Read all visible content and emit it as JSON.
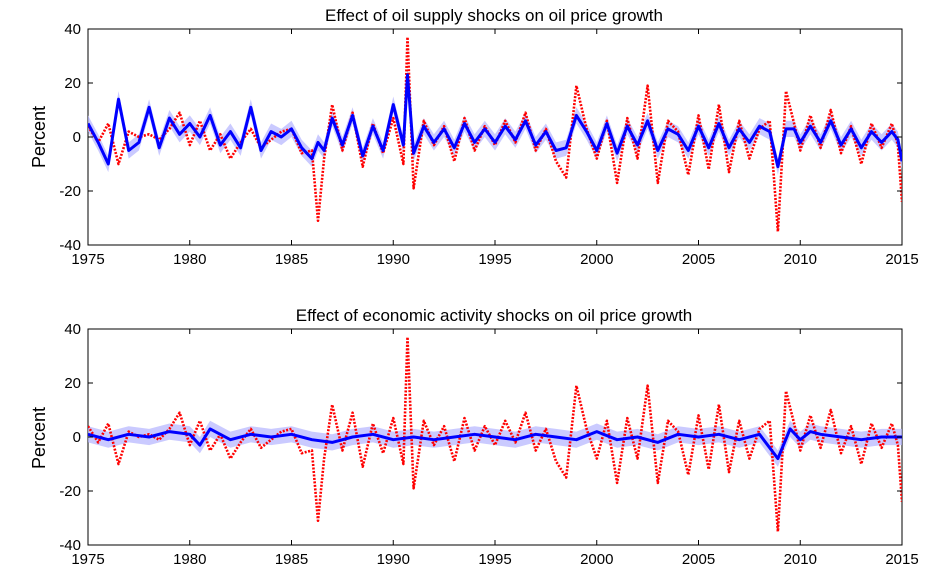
{
  "chart_data": [
    {
      "type": "line",
      "title": "Effect of oil supply shocks on oil price growth",
      "xlabel": "",
      "ylabel": "Percent",
      "xlim": [
        1975,
        2015
      ],
      "ylim": [
        -40,
        40
      ],
      "xticks": [
        1975,
        1980,
        1985,
        1990,
        1995,
        2000,
        2005,
        2010,
        2015
      ],
      "yticks": [
        -40,
        -20,
        0,
        20,
        40
      ],
      "grid": false,
      "legend": "none",
      "colors": {
        "observed": "#ff0000",
        "effect": "#0000ff",
        "band": "#b3b3ff"
      },
      "series": [
        {
          "style": "dotted-red",
          "x": [
            1975.0,
            1975.5,
            1976.0,
            1976.5,
            1977.0,
            1977.5,
            1978.0,
            1978.5,
            1979.0,
            1979.5,
            1980.0,
            1980.5,
            1981.0,
            1981.5,
            1982.0,
            1982.5,
            1983.0,
            1983.5,
            1984.0,
            1984.5,
            1985.0,
            1985.5,
            1986.0,
            1986.3,
            1986.6,
            1987.0,
            1987.5,
            1988.0,
            1988.5,
            1989.0,
            1989.5,
            1990.0,
            1990.5,
            1990.7,
            1991.0,
            1991.5,
            1992.0,
            1992.5,
            1993.0,
            1993.5,
            1994.0,
            1994.5,
            1995.0,
            1995.5,
            1996.0,
            1996.5,
            1997.0,
            1997.5,
            1998.0,
            1998.5,
            1999.0,
            1999.5,
            2000.0,
            2000.5,
            2001.0,
            2001.5,
            2002.0,
            2002.5,
            2003.0,
            2003.5,
            2004.0,
            2004.5,
            2005.0,
            2005.5,
            2006.0,
            2006.5,
            2007.0,
            2007.5,
            2008.0,
            2008.5,
            2008.9,
            2009.3,
            2009.7,
            2010.0,
            2010.5,
            2011.0,
            2011.5,
            2012.0,
            2012.5,
            2013.0,
            2013.5,
            2014.0,
            2014.5,
            2014.8,
            2015.0
          ],
          "y": [
            4,
            -2,
            5,
            -10,
            2,
            0,
            1,
            -1,
            3,
            9,
            -3,
            6,
            -5,
            1,
            -8,
            -2,
            3,
            -4,
            -1,
            2,
            3,
            -6,
            -5,
            -31,
            -8,
            12,
            -5,
            9,
            -11,
            5,
            -6,
            7,
            -10,
            37,
            -19,
            6,
            -3,
            4,
            -9,
            7,
            -5,
            4,
            -3,
            6,
            -2,
            9,
            -5,
            3,
            -9,
            -15,
            19,
            3,
            -8,
            6,
            -17,
            7,
            -8,
            19,
            -17,
            6,
            2,
            -14,
            8,
            -12,
            12,
            -13,
            6,
            -8,
            3,
            6,
            -35,
            17,
            5,
            -5,
            8,
            -4,
            10,
            -6,
            4,
            -10,
            5,
            -4,
            5,
            -3,
            -24
          ]
        },
        {
          "style": "solid-blue",
          "x": [
            1975.0,
            1975.5,
            1976.0,
            1976.5,
            1977.0,
            1977.5,
            1978.0,
            1978.5,
            1979.0,
            1979.5,
            1980.0,
            1980.5,
            1981.0,
            1981.5,
            1982.0,
            1982.5,
            1983.0,
            1983.5,
            1984.0,
            1984.5,
            1985.0,
            1985.5,
            1986.0,
            1986.3,
            1986.6,
            1987.0,
            1987.5,
            1988.0,
            1988.5,
            1989.0,
            1989.5,
            1990.0,
            1990.5,
            1990.7,
            1991.0,
            1991.5,
            1992.0,
            1992.5,
            1993.0,
            1993.5,
            1994.0,
            1994.5,
            1995.0,
            1995.5,
            1996.0,
            1996.5,
            1997.0,
            1997.5,
            1998.0,
            1998.5,
            1999.0,
            1999.5,
            2000.0,
            2000.5,
            2001.0,
            2001.5,
            2002.0,
            2002.5,
            2003.0,
            2003.5,
            2004.0,
            2004.5,
            2005.0,
            2005.5,
            2006.0,
            2006.5,
            2007.0,
            2007.5,
            2008.0,
            2008.5,
            2008.9,
            2009.3,
            2009.7,
            2010.0,
            2010.5,
            2011.0,
            2011.5,
            2012.0,
            2012.5,
            2013.0,
            2013.5,
            2014.0,
            2014.5,
            2014.8,
            2015.0
          ],
          "y": [
            5,
            -2,
            -10,
            14,
            -5,
            -2,
            11,
            -4,
            7,
            1,
            5,
            0,
            8,
            -3,
            2,
            -4,
            11,
            -5,
            2,
            0,
            3,
            -4,
            -8,
            -2,
            -5,
            7,
            -3,
            8,
            -7,
            4,
            -5,
            12,
            -3,
            23,
            -6,
            4,
            -2,
            3,
            -4,
            5,
            -2,
            3,
            -2,
            4,
            -1,
            6,
            -3,
            2,
            -5,
            -4,
            8,
            2,
            -5,
            5,
            -6,
            4,
            -3,
            6,
            -5,
            3,
            1,
            -5,
            4,
            -4,
            5,
            -4,
            3,
            -2,
            4,
            2,
            -11,
            3,
            3,
            -2,
            4,
            -2,
            6,
            -3,
            3,
            -4,
            2,
            -2,
            2,
            -1,
            -9
          ]
        }
      ]
    },
    {
      "type": "line",
      "title": "Effect of economic activity shocks on oil price growth",
      "xlabel": "",
      "ylabel": "Percent",
      "xlim": [
        1975,
        2015
      ],
      "ylim": [
        -40,
        40
      ],
      "xticks": [
        1975,
        1980,
        1985,
        1990,
        1995,
        2000,
        2005,
        2010,
        2015
      ],
      "yticks": [
        -40,
        -20,
        0,
        20,
        40
      ],
      "grid": false,
      "legend": "none",
      "colors": {
        "observed": "#ff0000",
        "effect": "#0000ff",
        "band": "#b3b3ff"
      },
      "series": [
        {
          "style": "dotted-red",
          "x": [
            1975.0,
            1975.5,
            1976.0,
            1976.5,
            1977.0,
            1977.5,
            1978.0,
            1978.5,
            1979.0,
            1979.5,
            1980.0,
            1980.5,
            1981.0,
            1981.5,
            1982.0,
            1982.5,
            1983.0,
            1983.5,
            1984.0,
            1984.5,
            1985.0,
            1985.5,
            1986.0,
            1986.3,
            1986.6,
            1987.0,
            1987.5,
            1988.0,
            1988.5,
            1989.0,
            1989.5,
            1990.0,
            1990.5,
            1990.7,
            1991.0,
            1991.5,
            1992.0,
            1992.5,
            1993.0,
            1993.5,
            1994.0,
            1994.5,
            1995.0,
            1995.5,
            1996.0,
            1996.5,
            1997.0,
            1997.5,
            1998.0,
            1998.5,
            1999.0,
            1999.5,
            2000.0,
            2000.5,
            2001.0,
            2001.5,
            2002.0,
            2002.5,
            2003.0,
            2003.5,
            2004.0,
            2004.5,
            2005.0,
            2005.5,
            2006.0,
            2006.5,
            2007.0,
            2007.5,
            2008.0,
            2008.5,
            2008.9,
            2009.3,
            2009.7,
            2010.0,
            2010.5,
            2011.0,
            2011.5,
            2012.0,
            2012.5,
            2013.0,
            2013.5,
            2014.0,
            2014.5,
            2014.8,
            2015.0
          ],
          "y": [
            4,
            -2,
            5,
            -10,
            2,
            0,
            1,
            -1,
            3,
            9,
            -3,
            6,
            -5,
            1,
            -8,
            -2,
            3,
            -4,
            -1,
            2,
            3,
            -6,
            -5,
            -31,
            -8,
            12,
            -5,
            9,
            -11,
            5,
            -6,
            7,
            -10,
            37,
            -19,
            6,
            -3,
            4,
            -9,
            7,
            -5,
            4,
            -3,
            6,
            -2,
            9,
            -5,
            3,
            -9,
            -15,
            19,
            3,
            -8,
            6,
            -17,
            7,
            -8,
            19,
            -17,
            6,
            2,
            -14,
            8,
            -12,
            12,
            -13,
            6,
            -8,
            3,
            6,
            -35,
            17,
            5,
            -5,
            8,
            -4,
            10,
            -6,
            4,
            -10,
            5,
            -4,
            5,
            -3,
            -24
          ]
        },
        {
          "style": "solid-blue",
          "x": [
            1975.0,
            1976.0,
            1977.0,
            1978.0,
            1979.0,
            1980.0,
            1980.5,
            1981.0,
            1982.0,
            1983.0,
            1984.0,
            1985.0,
            1986.0,
            1987.0,
            1988.0,
            1989.0,
            1990.0,
            1991.0,
            1992.0,
            1993.0,
            1994.0,
            1995.0,
            1996.0,
            1997.0,
            1998.0,
            1999.0,
            2000.0,
            2001.0,
            2002.0,
            2003.0,
            2004.0,
            2005.0,
            2006.0,
            2007.0,
            2008.0,
            2008.9,
            2009.5,
            2010.0,
            2010.5,
            2011.0,
            2012.0,
            2013.0,
            2014.0,
            2015.0
          ],
          "y": [
            1,
            -1,
            1,
            0,
            2,
            1,
            -3,
            3,
            -1,
            1,
            0,
            1,
            -1,
            -2,
            0,
            1,
            -1,
            0,
            -1,
            0,
            1,
            0,
            -1,
            1,
            0,
            -1,
            2,
            -1,
            0,
            -2,
            1,
            0,
            1,
            -1,
            1,
            -8,
            3,
            -1,
            2,
            1,
            0,
            -1,
            0,
            0
          ]
        }
      ]
    }
  ]
}
